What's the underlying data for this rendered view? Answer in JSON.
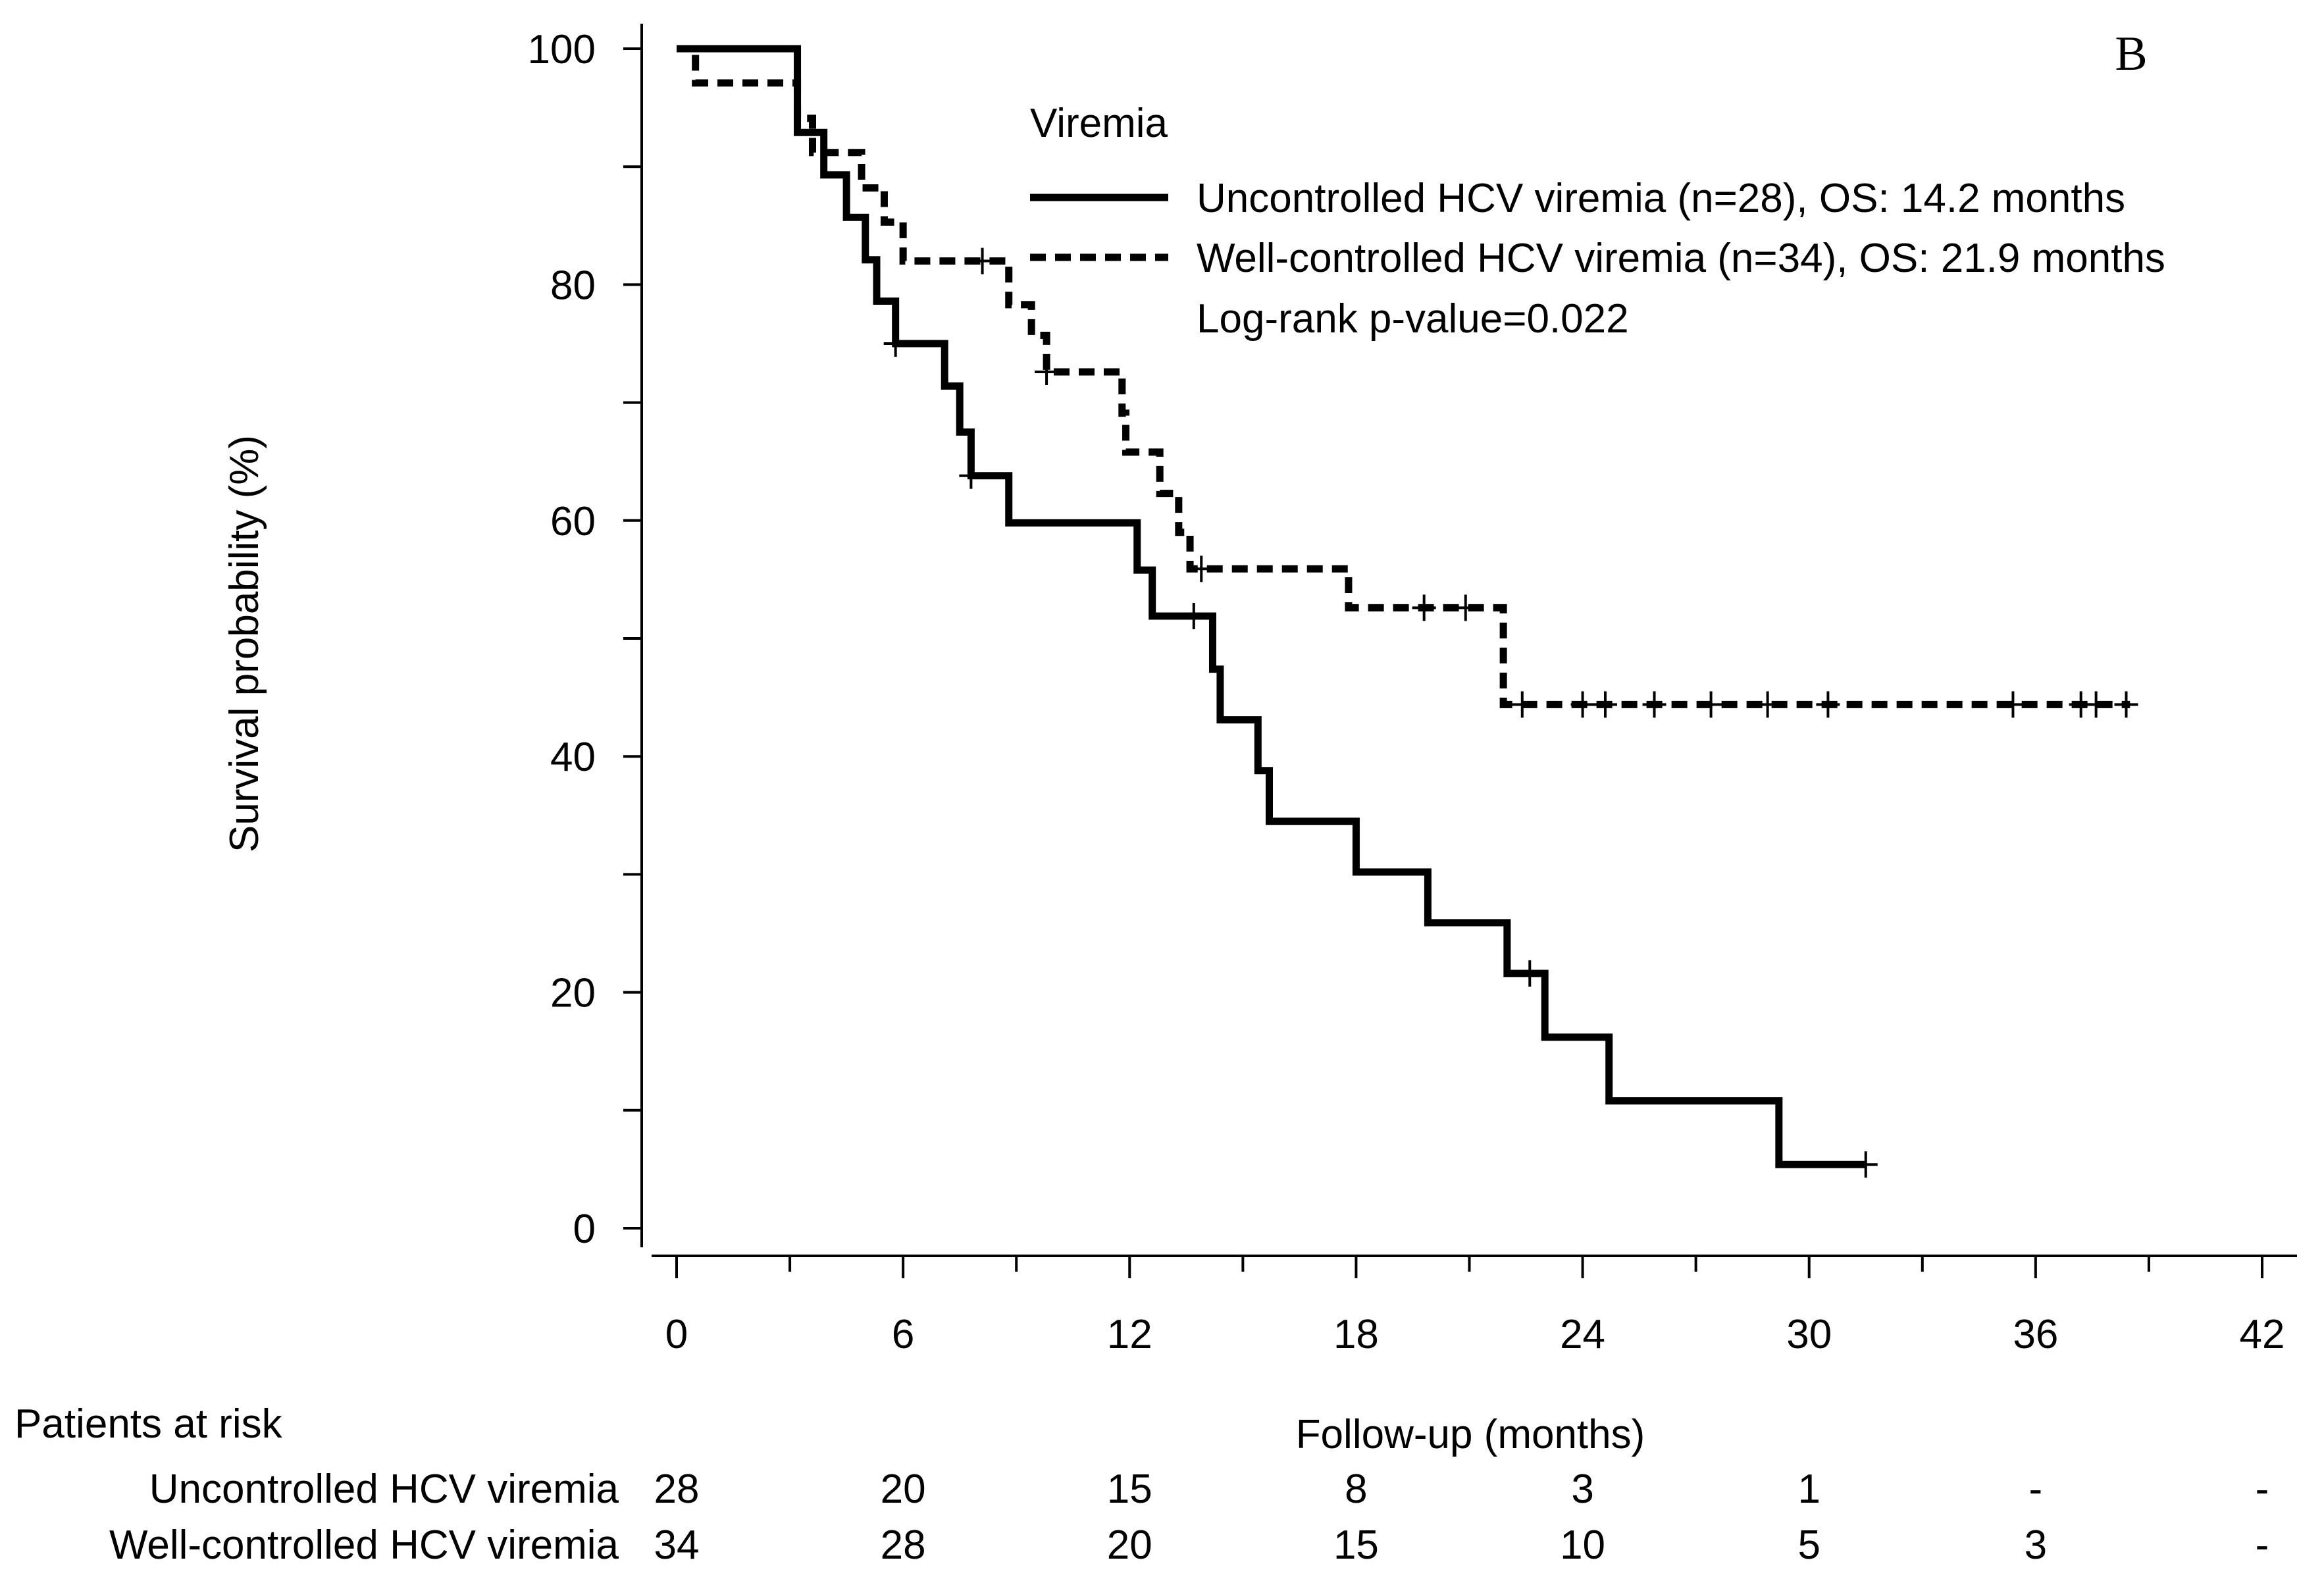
{
  "chart_data": {
    "type": "line",
    "subtype": "kaplan-meier",
    "panel_label": "B",
    "ylabel": "Survival probability (%)",
    "xlabel": "Follow-up (months)",
    "xlim": [
      0,
      42
    ],
    "ylim": [
      0,
      100
    ],
    "x_ticks": [
      0,
      6,
      12,
      18,
      24,
      30,
      36,
      42
    ],
    "y_ticks": [
      0,
      20,
      40,
      60,
      80,
      100
    ],
    "legend": {
      "title": "Viremia",
      "entries": [
        "Uncontrolled HCV viremia (n=28), OS: 14.2 months",
        "Well-controlled HCV viremia (n=34), OS: 21.9 months"
      ],
      "note": "Log-rank p-value=0.022",
      "placement": "top-right"
    },
    "series": [
      {
        "name": "Uncontrolled HCV viremia",
        "style": "solid",
        "steps": [
          [
            0,
            100
          ],
          [
            3.2,
            92.9
          ],
          [
            3.9,
            89.3
          ],
          [
            4.5,
            85.7
          ],
          [
            5.0,
            82.1
          ],
          [
            5.3,
            78.6
          ],
          [
            5.8,
            75.0
          ],
          [
            7.1,
            71.4
          ],
          [
            7.5,
            67.5
          ],
          [
            7.8,
            63.8
          ],
          [
            8.8,
            59.8
          ],
          [
            12.2,
            55.8
          ],
          [
            12.6,
            51.9
          ],
          [
            14.2,
            47.4
          ],
          [
            14.4,
            43.1
          ],
          [
            15.4,
            38.8
          ],
          [
            15.7,
            34.5
          ],
          [
            18.0,
            30.2
          ],
          [
            19.9,
            25.9
          ],
          [
            22.0,
            21.6
          ],
          [
            23.0,
            16.2
          ],
          [
            24.7,
            10.8
          ],
          [
            29.2,
            5.4
          ]
        ],
        "end_x": 31.5,
        "censored": [
          [
            5.8,
            75.0
          ],
          [
            7.8,
            63.8
          ],
          [
            13.7,
            51.9
          ],
          [
            22.6,
            21.6
          ],
          [
            31.5,
            5.4
          ]
        ]
      },
      {
        "name": "Well-controlled HCV viremia",
        "style": "dashed",
        "steps": [
          [
            0,
            100
          ],
          [
            0.5,
            97.1
          ],
          [
            3.2,
            94.1
          ],
          [
            3.6,
            91.2
          ],
          [
            4.9,
            88.2
          ],
          [
            5.5,
            85.3
          ],
          [
            6.0,
            82.0
          ],
          [
            8.8,
            78.3
          ],
          [
            9.4,
            75.7
          ],
          [
            9.8,
            72.6
          ],
          [
            11.8,
            69.1
          ],
          [
            11.9,
            65.8
          ],
          [
            12.8,
            62.3
          ],
          [
            13.3,
            59.0
          ],
          [
            13.6,
            55.9
          ],
          [
            17.8,
            52.6
          ],
          [
            21.9,
            44.4
          ]
        ],
        "end_x": 38.5,
        "censored": [
          [
            8.1,
            82.0
          ],
          [
            9.8,
            72.6
          ],
          [
            13.9,
            55.9
          ],
          [
            19.8,
            52.6
          ],
          [
            20.9,
            52.6
          ],
          [
            22.4,
            44.4
          ],
          [
            24.0,
            44.4
          ],
          [
            24.6,
            44.4
          ],
          [
            25.9,
            44.4
          ],
          [
            27.4,
            44.4
          ],
          [
            28.9,
            44.4
          ],
          [
            30.5,
            44.4
          ],
          [
            35.4,
            44.4
          ],
          [
            37.2,
            44.4
          ],
          [
            37.6,
            44.4
          ],
          [
            38.4,
            44.4
          ]
        ]
      }
    ],
    "risk_table": {
      "title": "Patients at risk",
      "rows": [
        {
          "label": "Uncontrolled HCV viremia",
          "values": [
            "28",
            "20",
            "15",
            "8",
            "3",
            "1",
            "-",
            "-"
          ]
        },
        {
          "label": "Well-controlled HCV viremia",
          "values": [
            "34",
            "28",
            "20",
            "15",
            "10",
            "5",
            "3",
            "-"
          ]
        }
      ]
    },
    "colors": {
      "line": "#000000",
      "background": "#ffffff"
    }
  }
}
